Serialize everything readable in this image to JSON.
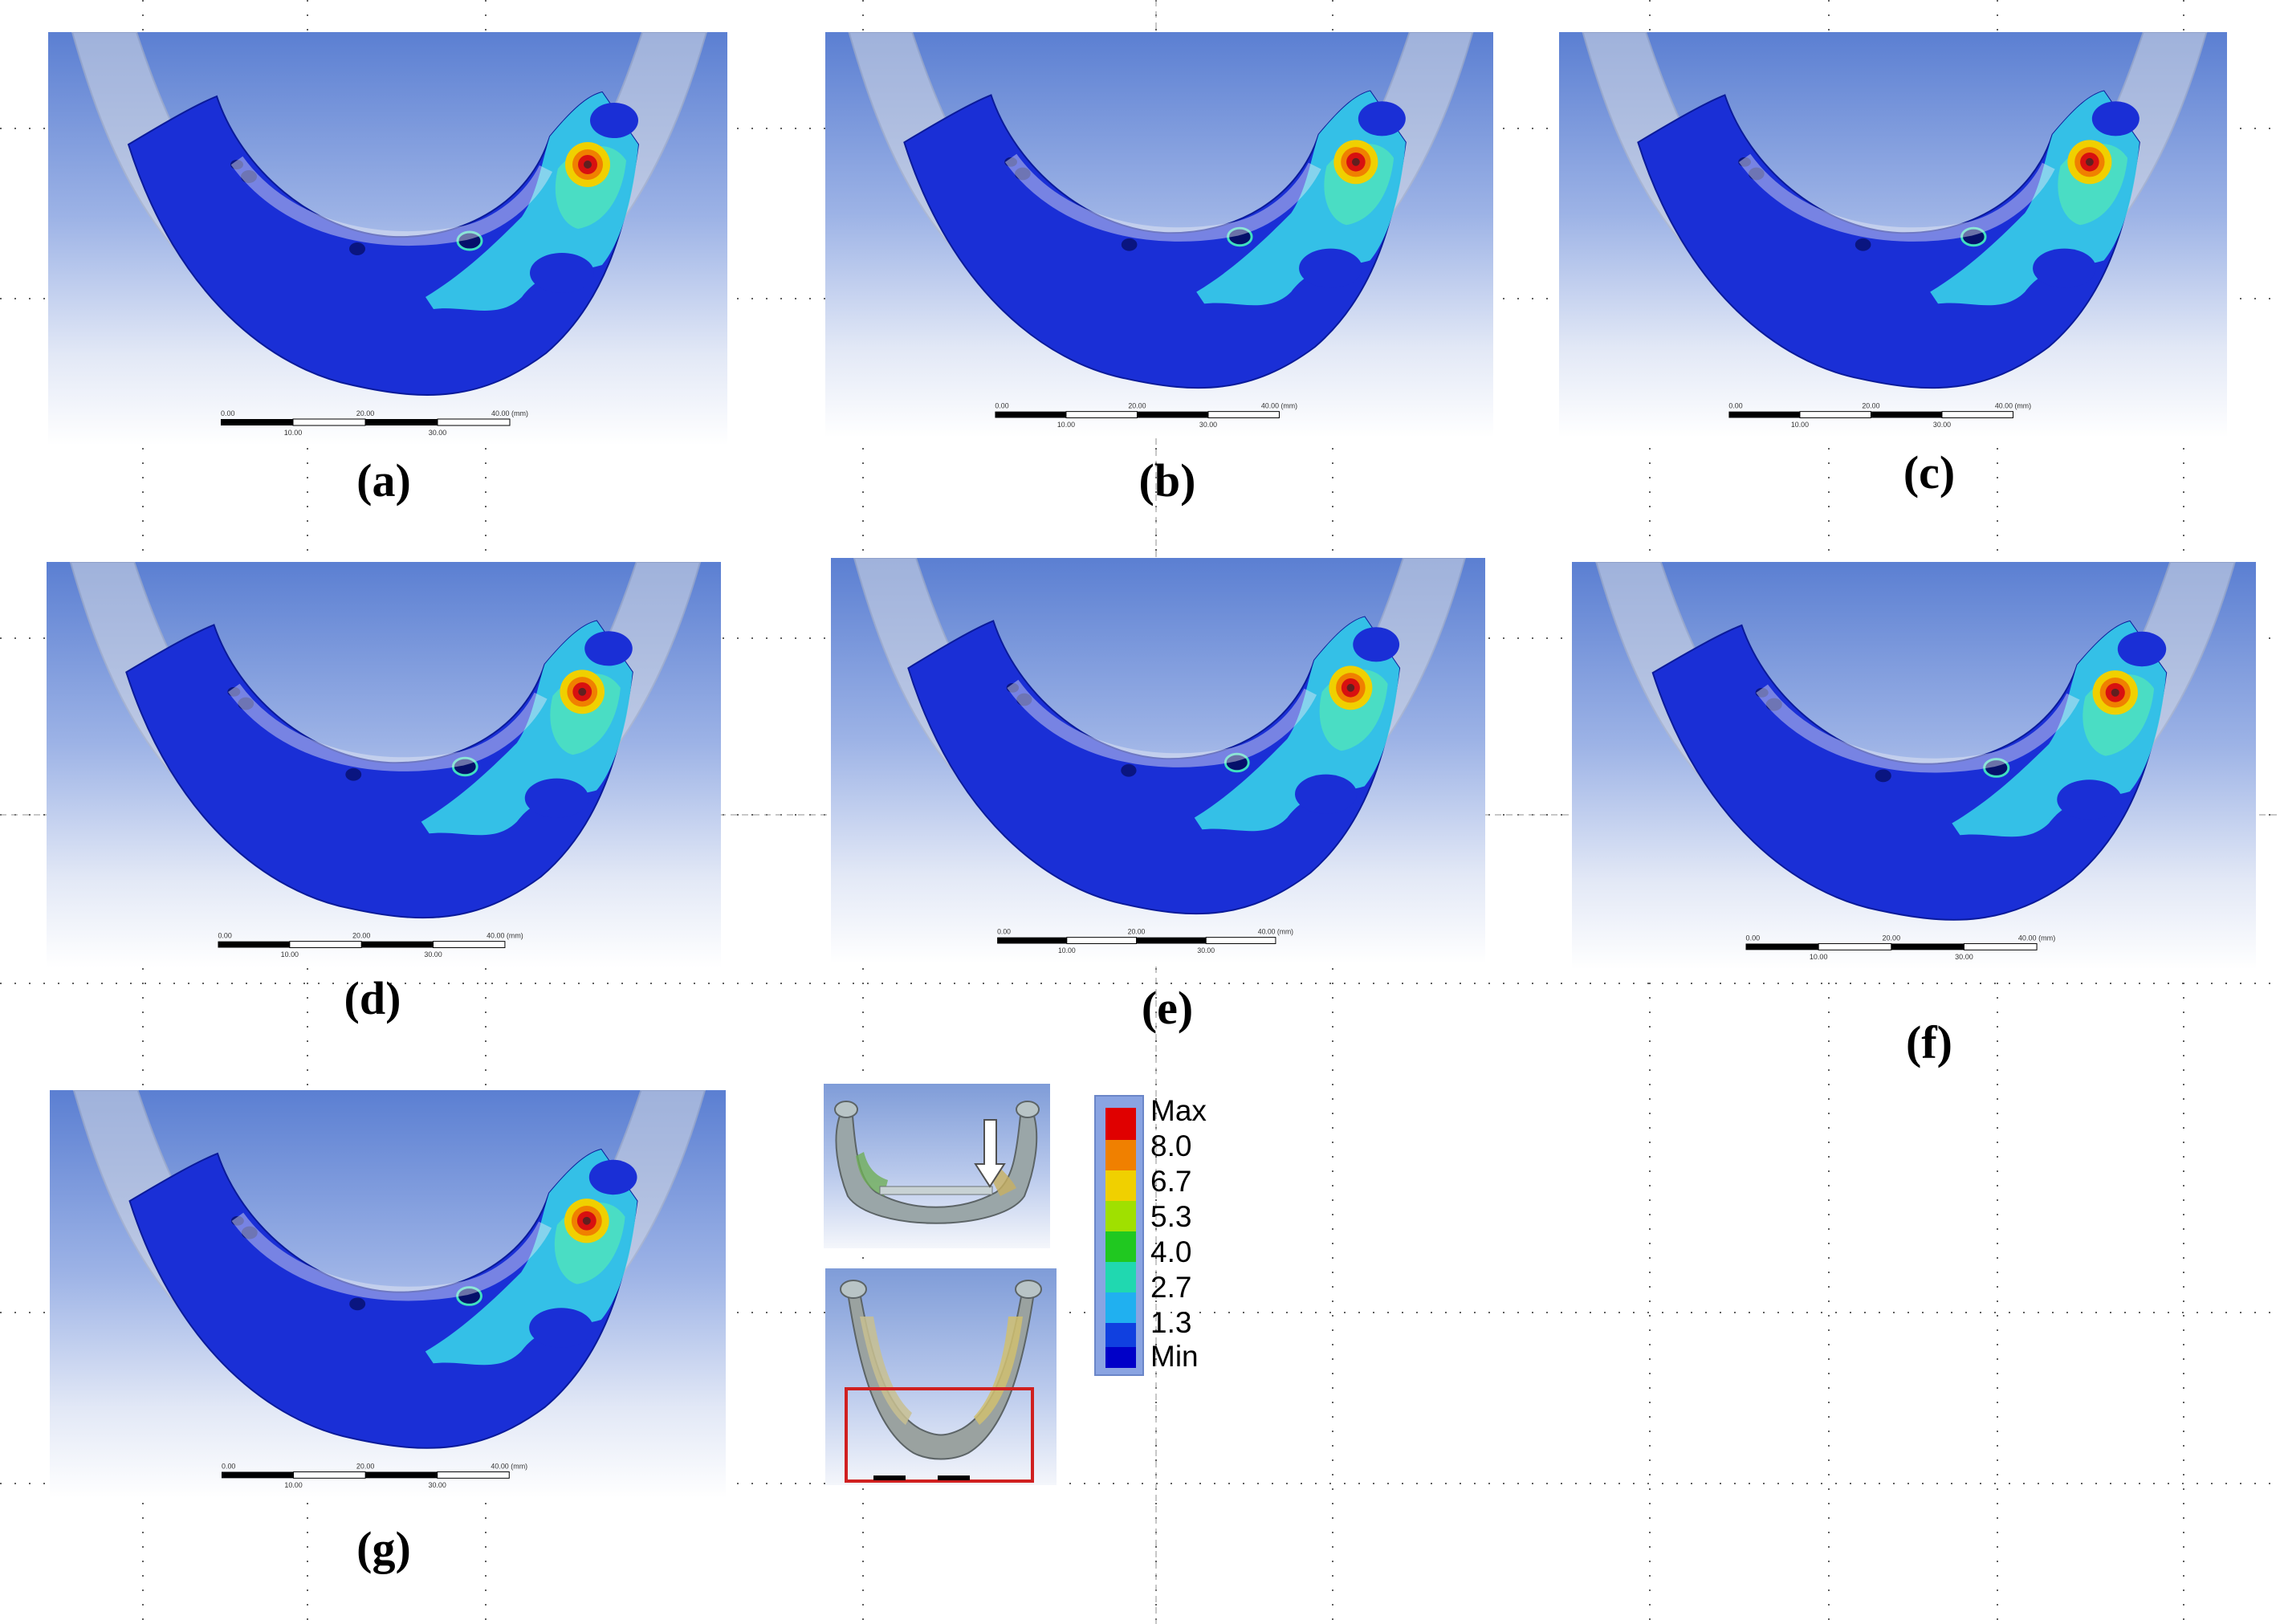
{
  "panels": [
    {
      "label": "(a)",
      "scale": {
        "ticks_top": [
          "0.00",
          "20.00",
          "40.00 (mm)"
        ],
        "ticks_bottom": [
          "10.00",
          "30.00"
        ]
      }
    },
    {
      "label": "(b)",
      "scale": {
        "ticks_top": [
          "0.00",
          "20.00",
          "40.00 (mm)"
        ],
        "ticks_bottom": [
          "10.00",
          "30.00"
        ]
      }
    },
    {
      "label": "(c)",
      "scale": {
        "ticks_top": [
          "0.00",
          "20.00",
          "40.00 (mm)"
        ],
        "ticks_bottom": [
          "10.00",
          "30.00"
        ]
      }
    },
    {
      "label": "(d)",
      "scale": {
        "ticks_top": [
          "0.00",
          "20.00",
          "40.00 (mm)"
        ],
        "ticks_bottom": [
          "10.00",
          "30.00"
        ]
      }
    },
    {
      "label": "(e)",
      "scale": {
        "ticks_top": [
          "0.00",
          "20.00",
          "40.00 (mm)"
        ],
        "ticks_bottom": [
          "10.00",
          "30.00"
        ]
      }
    },
    {
      "label": "(f)",
      "scale": {
        "ticks_top": [
          "0.00",
          "20.00",
          "40.00 (mm)"
        ],
        "ticks_bottom": [
          "10.00",
          "30.00"
        ]
      }
    },
    {
      "label": "(g)",
      "scale": {
        "ticks_top": [
          "0.00",
          "20.00",
          "40.00 (mm)"
        ],
        "ticks_bottom": [
          "10.00",
          "30.00"
        ]
      }
    }
  ],
  "legend": {
    "labels": [
      "Max",
      "8.0",
      "6.7",
      "5.3",
      "4.0",
      "2.7",
      "1.3",
      "Min"
    ],
    "colors": [
      "#e00000",
      "#f08000",
      "#f0d000",
      "#a0e000",
      "#20c820",
      "#20d8b0",
      "#20b0f0",
      "#1040e0",
      "#0000c8"
    ]
  },
  "colors": {
    "mesh_blue": "#1a2fd6",
    "stress_cyan": "#36c8e8",
    "stress_teal": "#4ce0c0",
    "hotspot_red": "#d81010",
    "hotspot_yellow": "#f0d000",
    "inset_box": "#d02020"
  }
}
